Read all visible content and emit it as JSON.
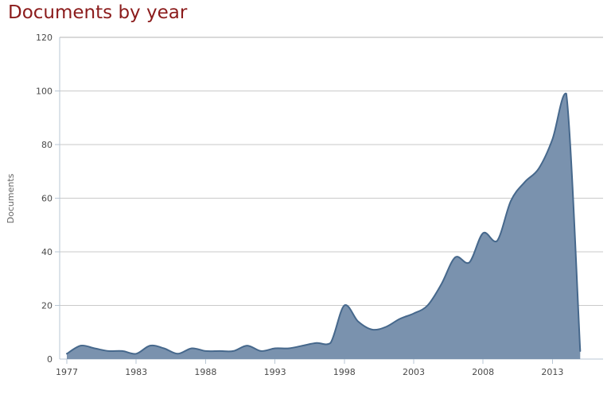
{
  "title": "Documents by year",
  "chart_data": {
    "type": "area",
    "title": "Documents by year",
    "xlabel": "",
    "ylabel": "Documents",
    "ylim": [
      0,
      120
    ],
    "y_ticks": [
      0,
      20,
      40,
      60,
      80,
      100,
      120
    ],
    "grid": true,
    "legend": "none",
    "categories": [
      "1977",
      "1978",
      "1979",
      "1980",
      "1981",
      "1983",
      "1984",
      "1985",
      "1986",
      "1987",
      "1988",
      "1989",
      "1990",
      "1991",
      "1992",
      "1993",
      "1994",
      "1995",
      "1996",
      "1997",
      "1998",
      "1999",
      "2000",
      "2001",
      "2002",
      "2003",
      "2004",
      "2005",
      "2006",
      "2007",
      "2008",
      "2009",
      "2010",
      "2011",
      "2012",
      "2013",
      "2014",
      "2015"
    ],
    "values": [
      2,
      5,
      4,
      3,
      3,
      2,
      5,
      4,
      2,
      4,
      3,
      3,
      3,
      5,
      3,
      4,
      4,
      5,
      6,
      6,
      20,
      14,
      11,
      12,
      15,
      17,
      20,
      28,
      38,
      36,
      47,
      44,
      59,
      66,
      71,
      82,
      99,
      3
    ],
    "x_tick_labels": [
      "1977",
      "1983",
      "1988",
      "1993",
      "1998",
      "2003",
      "2008",
      "2013"
    ],
    "x_tick_every": 5,
    "colors": {
      "title": "#8b1b1b",
      "area_fill": "#7a92ae",
      "area_line": "#46688c",
      "gridline": "#cacaca",
      "plot_border_top": "#b3b3b3",
      "axis_line": "#b9c7d4",
      "tick_label": "#4a4a4a",
      "axis_title": "#666666"
    }
  }
}
